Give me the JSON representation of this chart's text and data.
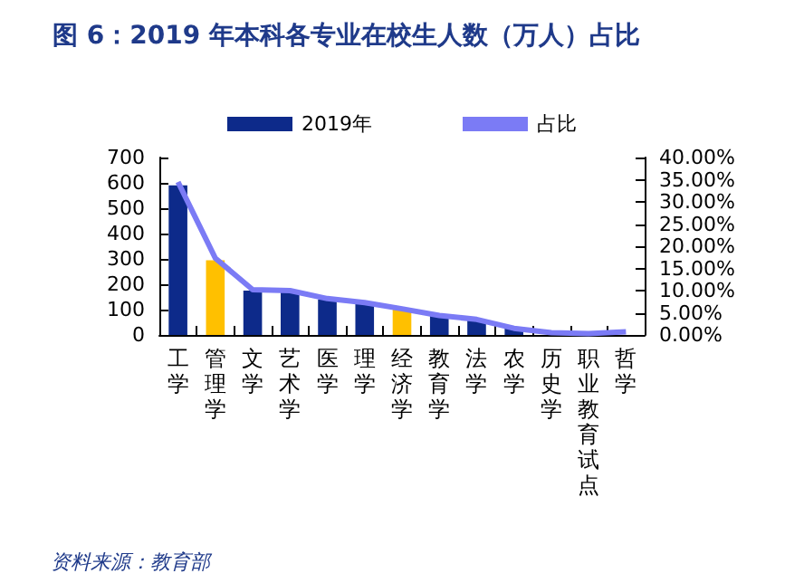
{
  "chart_data": {
    "type": "bar",
    "title": "图 6：2019 年本科各专业在校生人数（万人）占比",
    "categories": [
      "工学",
      "管理学",
      "文学",
      "艺术学",
      "医学",
      "理学",
      "经济学",
      "教育学",
      "法学",
      "农学",
      "历史学",
      "职业教育试点",
      "哲学"
    ],
    "series": [
      {
        "name": "2019年",
        "color": "#0d2a8a",
        "colors": [
          "#0d2a8a",
          "#ffc000",
          "#0d2a8a",
          "#0d2a8a",
          "#0d2a8a",
          "#0d2a8a",
          "#ffc000",
          "#0d2a8a",
          "#0d2a8a",
          "#0d2a8a",
          "#0d2a8a",
          "#0d2a8a",
          "#0d2a8a"
        ],
        "values": [
          590,
          295,
          175,
          170,
          140,
          125,
          100,
          75,
          60,
          25,
          null,
          5,
          null
        ]
      },
      {
        "name": "占比",
        "type": "line",
        "axis": "y2",
        "color": "#7b7bf5",
        "values": [
          34.5,
          17.3,
          10.2,
          10,
          8.2,
          7.3,
          5.9,
          4.4,
          3.5,
          1.5,
          0.5,
          0.3,
          0.7
        ]
      }
    ],
    "ylim": [
      0,
      700
    ],
    "yticks": [
      0,
      100,
      200,
      300,
      400,
      500,
      600,
      700
    ],
    "y2lim": [
      0,
      40
    ],
    "y2ticks": [
      {
        "value": 0,
        "label": "0.00%"
      },
      {
        "value": 5,
        "label": "5.00%"
      },
      {
        "value": 10,
        "label": "10.00%"
      },
      {
        "value": 15,
        "label": "15.00%"
      },
      {
        "value": 20,
        "label": "20.00%"
      },
      {
        "value": 25,
        "label": "25.00%"
      },
      {
        "value": 30,
        "label": "30.00%"
      },
      {
        "value": 35,
        "label": "35.00%"
      },
      {
        "value": 40,
        "label": "40.00%"
      }
    ],
    "legend": "top",
    "grid": false,
    "marker": "none",
    "annotations": [
      "资料来源：教育部"
    ]
  }
}
